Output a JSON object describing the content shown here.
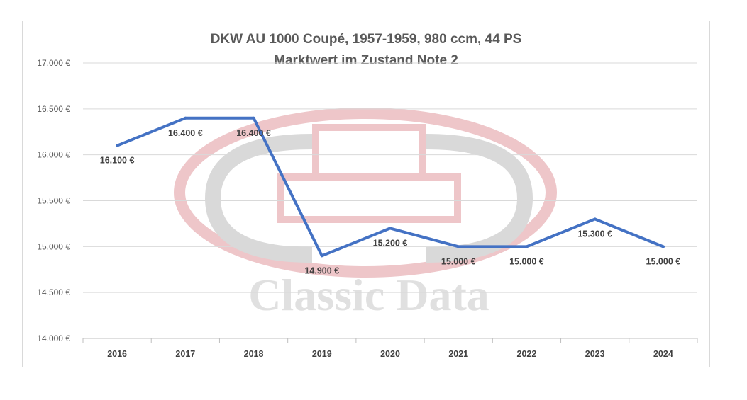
{
  "chart_data": {
    "type": "line",
    "title": "DKW AU 1000  Coupé, 1957-1959, 980 ccm, 44 PS",
    "subtitle": "Marktwert im Zustand Note 2",
    "categories": [
      "2016",
      "2017",
      "2018",
      "2019",
      "2020",
      "2021",
      "2022",
      "2023",
      "2024"
    ],
    "series": [
      {
        "values": [
          16100,
          16400,
          16400,
          14900,
          15200,
          15000,
          15000,
          15300,
          15000
        ],
        "labels": [
          "16.100 €",
          "16.400 €",
          "16.400 €",
          "14.900 €",
          "15.200 €",
          "15.000 €",
          "15.000 €",
          "15.300 €",
          "15.000 €"
        ],
        "color": "#4472c4"
      }
    ],
    "ylim": [
      14000,
      17000
    ],
    "yticks": [
      14000,
      14500,
      15000,
      15500,
      16000,
      16500,
      17000
    ],
    "ytick_labels": [
      "14.000 €",
      "14.500 €",
      "15.000 €",
      "15.500 €",
      "16.000 €",
      "16.500 €",
      "17.000 €"
    ],
    "grid": "horizontal",
    "legend": "none"
  },
  "watermark": {
    "text": "Classic Data",
    "color": "#e8b4b8"
  }
}
